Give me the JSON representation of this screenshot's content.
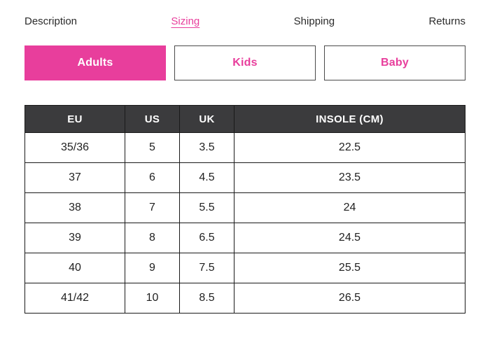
{
  "colors": {
    "accent": "#e83e9c",
    "table_header_bg": "#3b3b3d",
    "border": "#1a1a1a"
  },
  "tabs": [
    {
      "label": "Description",
      "active": false
    },
    {
      "label": "Sizing",
      "active": true
    },
    {
      "label": "Shipping",
      "active": false
    },
    {
      "label": "Returns",
      "active": false
    }
  ],
  "size_toggle": [
    {
      "label": "Adults",
      "active": true
    },
    {
      "label": "Kids",
      "active": false
    },
    {
      "label": "Baby",
      "active": false
    }
  ],
  "size_table": {
    "columns": [
      "EU",
      "US",
      "UK",
      "INSOLE (CM)"
    ],
    "rows": [
      [
        "35/36",
        "5",
        "3.5",
        "22.5"
      ],
      [
        "37",
        "6",
        "4.5",
        "23.5"
      ],
      [
        "38",
        "7",
        "5.5",
        "24"
      ],
      [
        "39",
        "8",
        "6.5",
        "24.5"
      ],
      [
        "40",
        "9",
        "7.5",
        "25.5"
      ],
      [
        "41/42",
        "10",
        "8.5",
        "26.5"
      ]
    ]
  }
}
